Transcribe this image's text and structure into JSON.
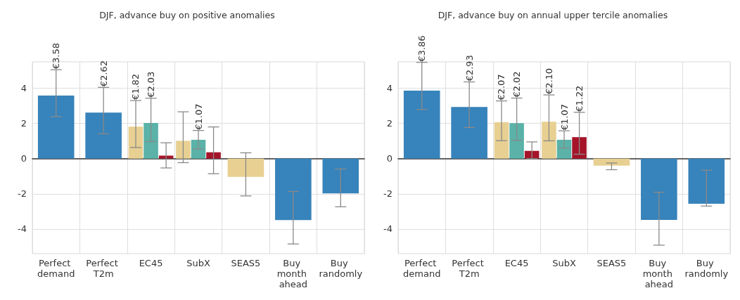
{
  "chart_data": [
    {
      "type": "bar",
      "title": "DJF, advance buy on positive anomalies",
      "categories": [
        "Perfect demand",
        "Perfect T2m",
        "EC45",
        "SubX",
        "SEAS5",
        "Buy month ahead",
        "Buy randomly"
      ],
      "ylim": [
        -5.4,
        5.5
      ],
      "yticks": [
        -4,
        -2,
        0,
        2,
        4
      ],
      "grid": true,
      "series": [
        {
          "colors": [
            "#3783bb",
            "#3783bb",
            null,
            null,
            "#e8d092",
            "#3783bb",
            "#3783bb"
          ],
          "values": [
            3.58,
            2.62,
            null,
            null,
            -1.04,
            -3.49,
            -1.98
          ],
          "errors": [
            [
              2.39,
              5.05
            ],
            [
              1.41,
              4.05
            ],
            null,
            null,
            [
              -2.12,
              0.33
            ],
            [
              -4.85,
              -1.87
            ],
            [
              -2.74,
              -0.59
            ]
          ],
          "value_labels": [
            "€3.58",
            "€2.62",
            null,
            null,
            null,
            null,
            null
          ]
        },
        {
          "color": "#e8d092",
          "values": [
            null,
            null,
            1.82,
            1.01,
            null,
            null,
            null
          ],
          "errors": [
            null,
            null,
            [
              0.63,
              3.3
            ],
            [
              -0.23,
              2.66
            ],
            null,
            null,
            null
          ],
          "value_labels": [
            null,
            null,
            "€1.82",
            null,
            null,
            null,
            null
          ]
        },
        {
          "color": "#5ab2a8",
          "values": [
            null,
            null,
            2.03,
            1.07,
            null,
            null,
            null
          ],
          "errors": [
            null,
            null,
            [
              0.97,
              3.43
            ],
            [
              0.55,
              1.6
            ],
            null,
            null,
            null
          ],
          "value_labels": [
            null,
            null,
            "€2.03",
            "€1.07",
            null,
            null,
            null
          ]
        },
        {
          "color": "#a51429",
          "values": [
            null,
            null,
            0.17,
            0.36,
            null,
            null,
            null
          ],
          "errors": [
            null,
            null,
            [
              -0.53,
              0.9
            ],
            [
              -0.86,
              1.8
            ],
            null,
            null,
            null
          ]
        }
      ]
    },
    {
      "type": "bar",
      "title": "DJF, advance buy on annual upper tercile anomalies",
      "categories": [
        "Perfect demand",
        "Perfect T2m",
        "EC45",
        "SubX",
        "SEAS5",
        "Buy month ahead",
        "Buy randomly"
      ],
      "ylim": [
        -5.4,
        5.5
      ],
      "yticks": [
        -4,
        -2,
        0,
        2,
        4
      ],
      "grid": true,
      "series": [
        {
          "colors": [
            "#3783bb",
            "#3783bb",
            null,
            null,
            "#e8d092",
            "#3783bb",
            "#3783bb"
          ],
          "values": [
            3.86,
            2.93,
            null,
            null,
            -0.4,
            -3.48,
            -2.57
          ],
          "errors": [
            [
              2.79,
              5.47
            ],
            [
              1.77,
              4.36
            ],
            null,
            null,
            [
              -0.63,
              -0.25
            ],
            [
              -4.92,
              -1.91
            ],
            [
              -2.7,
              -0.66
            ]
          ],
          "value_labels": [
            "€3.86",
            "€2.93",
            null,
            null,
            null,
            null,
            null
          ]
        },
        {
          "color": "#e8d092",
          "values": [
            null,
            null,
            2.07,
            2.1,
            null,
            null,
            null
          ],
          "errors": [
            null,
            null,
            [
              1.02,
              3.28
            ],
            [
              1.01,
              3.62
            ],
            null,
            null,
            null
          ],
          "value_labels": [
            null,
            null,
            "€2.07",
            "€2.10",
            null,
            null,
            null
          ]
        },
        {
          "color": "#5ab2a8",
          "values": [
            null,
            null,
            2.02,
            1.07,
            null,
            null,
            null
          ],
          "errors": [
            null,
            null,
            [
              1.04,
              3.44
            ],
            [
              0.59,
              1.58
            ],
            null,
            null,
            null
          ],
          "value_labels": [
            null,
            null,
            "€2.02",
            "€1.07",
            null,
            null,
            null
          ]
        },
        {
          "color": "#a51429",
          "values": [
            null,
            null,
            0.44,
            1.22,
            null,
            null,
            null
          ],
          "errors": [
            null,
            null,
            [
              0,
              0.95
            ],
            [
              0.25,
              2.63
            ],
            null,
            null,
            null
          ],
          "value_labels": [
            null,
            null,
            null,
            "€1.22",
            null,
            null,
            null
          ]
        }
      ]
    }
  ]
}
